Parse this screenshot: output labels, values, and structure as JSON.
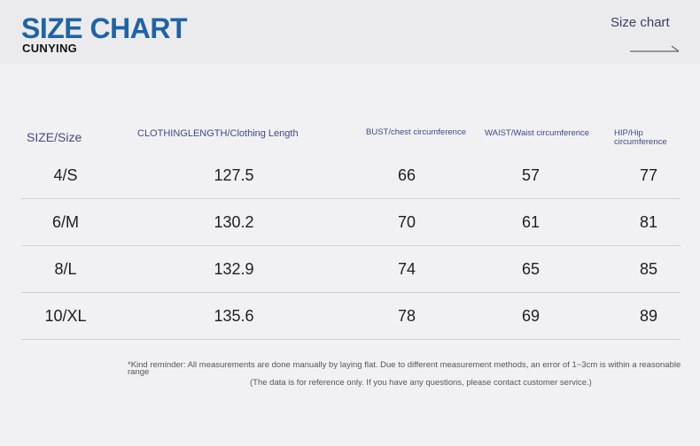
{
  "header": {
    "title": "SIZE CHART",
    "brand": "CUNYING",
    "corner_label": "Size chart"
  },
  "table": {
    "columns": [
      "SIZE/Size",
      "CLOTHINGLENGTH/Clothing Length",
      "BUST/chest circumference",
      "WAIST/Waist circumference",
      "HIP/Hip circumference"
    ],
    "rows": [
      [
        "4/S",
        "127.5",
        "66",
        "57",
        "77"
      ],
      [
        "6/M",
        "130.2",
        "70",
        "61",
        "81"
      ],
      [
        "8/L",
        "132.9",
        "74",
        "65",
        "85"
      ],
      [
        "10/XL",
        "135.6",
        "78",
        "69",
        "89"
      ]
    ]
  },
  "notes": {
    "reminder": "*Kind reminder: All measurements are done manually by laying flat. Due to different measurement methods, an error of 1~3cm is within a reasonable range",
    "reference": "(The data is for reference only. If you have any questions, please contact customer service.)"
  },
  "colors": {
    "title": "#1f63a6",
    "header_text": "#3f4a86",
    "background": "#f1f1f3"
  }
}
